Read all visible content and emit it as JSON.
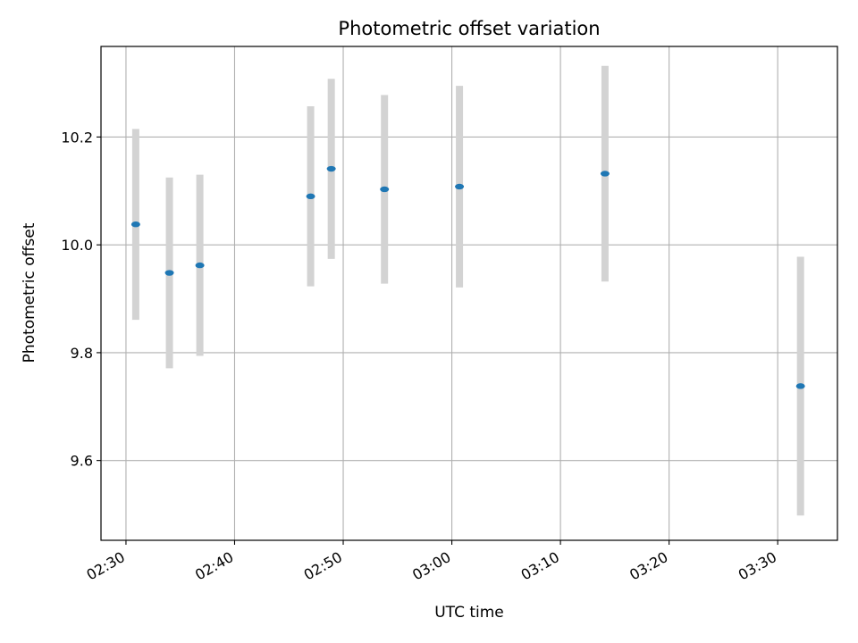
{
  "chart_data": {
    "type": "scatter",
    "title": "Photometric offset variation",
    "xlabel": "UTC time",
    "ylabel": "Photometric offset",
    "x_unit": "minutes after 02:30 UTC",
    "xlim": [
      -2.3,
      65.5
    ],
    "ylim": [
      9.452,
      10.368
    ],
    "xticks": [
      {
        "label": "02:30",
        "value": 0
      },
      {
        "label": "02:40",
        "value": 10
      },
      {
        "label": "02:50",
        "value": 20
      },
      {
        "label": "03:00",
        "value": 30
      },
      {
        "label": "03:10",
        "value": 40
      },
      {
        "label": "03:20",
        "value": 50
      },
      {
        "label": "03:30",
        "value": 60
      }
    ],
    "yticks": [
      {
        "label": "9.6",
        "value": 9.6
      },
      {
        "label": "9.8",
        "value": 9.8
      },
      {
        "label": "10.0",
        "value": 10.0
      },
      {
        "label": "10.2",
        "value": 10.2
      }
    ],
    "grid": true,
    "series": [
      {
        "color": "#1f77b4",
        "error_color": "#d3d3d3",
        "points": [
          {
            "x": 0.9,
            "y": 10.038,
            "err": 0.177
          },
          {
            "x": 4.0,
            "y": 9.948,
            "err": 0.177
          },
          {
            "x": 6.8,
            "y": 9.962,
            "err": 0.168
          },
          {
            "x": 17.0,
            "y": 10.09,
            "err": 0.167
          },
          {
            "x": 18.9,
            "y": 10.141,
            "err": 0.167
          },
          {
            "x": 23.8,
            "y": 10.103,
            "err": 0.175
          },
          {
            "x": 30.7,
            "y": 10.108,
            "err": 0.187
          },
          {
            "x": 44.1,
            "y": 10.132,
            "err": 0.2
          },
          {
            "x": 62.1,
            "y": 9.738,
            "err": 0.24
          }
        ]
      }
    ]
  }
}
